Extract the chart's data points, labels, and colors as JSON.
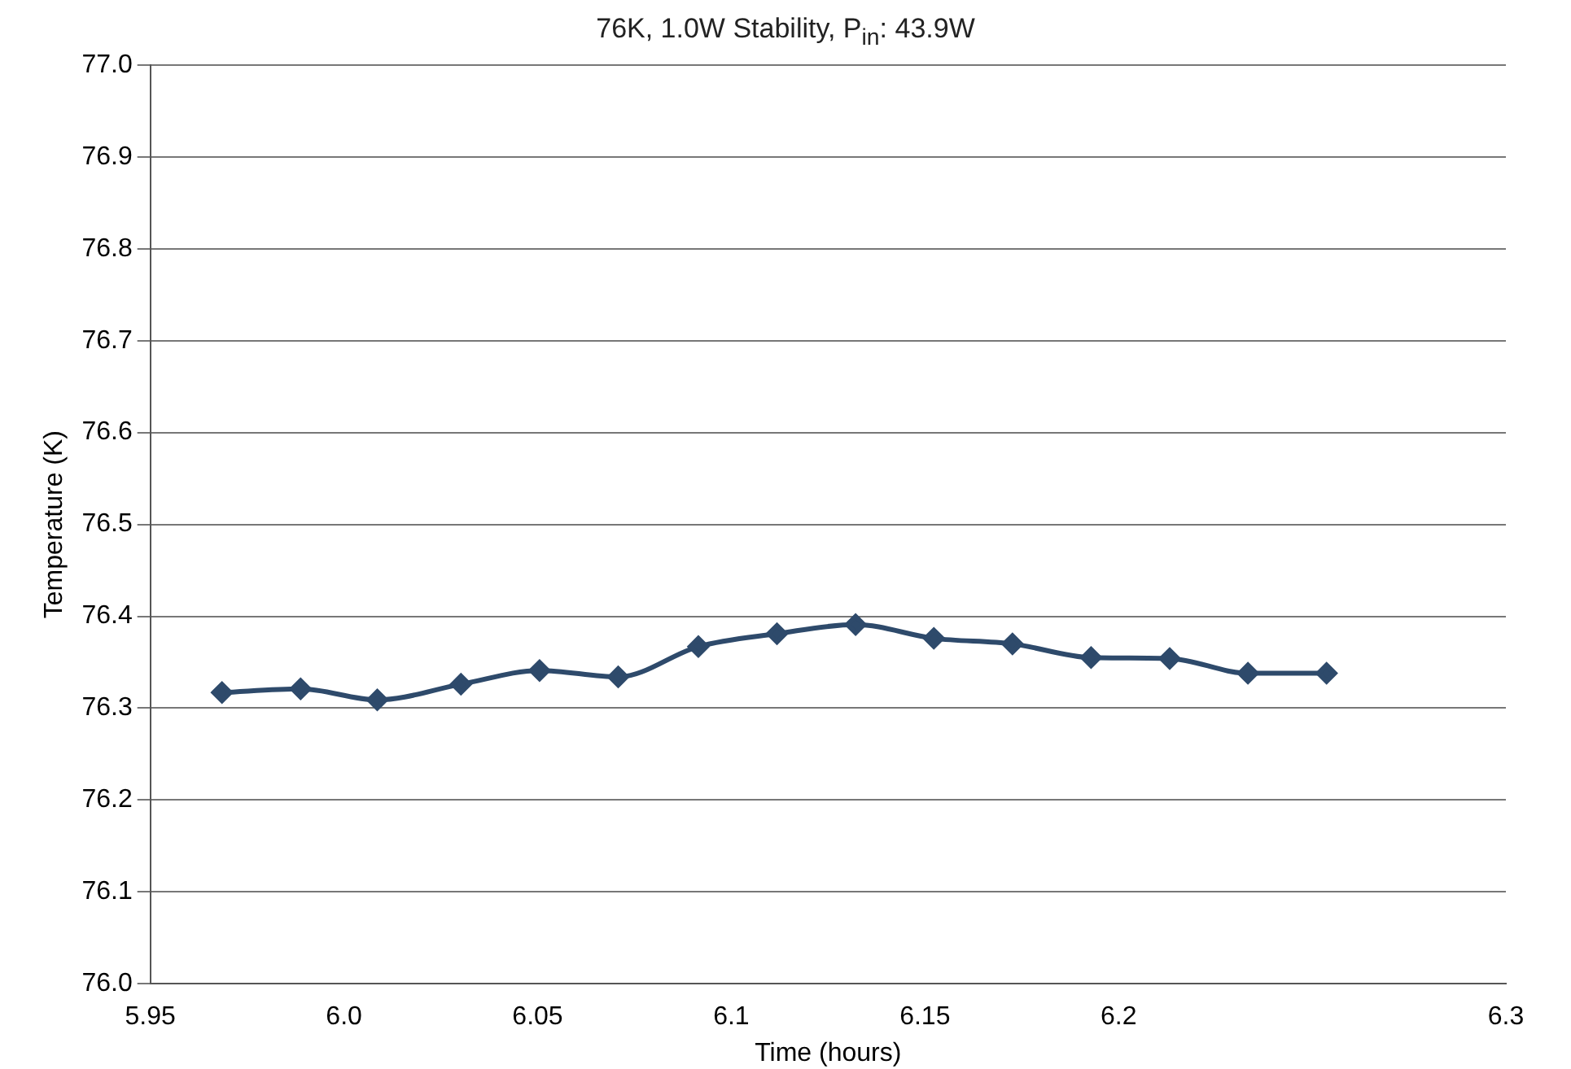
{
  "chart_data": {
    "type": "line",
    "title": "76K, 1.0W Stability, P$_{in}$: 43.9W",
    "xlabel": "Time (hours)",
    "ylabel": "Temperature (K)",
    "x": [
      5.9685,
      5.9888,
      6.0086,
      6.0302,
      6.0505,
      6.0708,
      6.0915,
      6.1118,
      6.1321,
      6.1523,
      6.1726,
      6.1929,
      6.2132,
      6.2334,
      6.2537
    ],
    "series": [
      {
        "color": "#2e4a6b",
        "values": [
          76.317,
          76.321,
          76.309,
          76.326,
          76.341,
          76.334,
          76.367,
          76.381,
          76.391,
          76.376,
          76.37,
          76.355,
          76.354,
          76.338,
          76.338
        ]
      }
    ],
    "xlim": [
      5.95,
      6.3
    ],
    "xticks": [
      5.95,
      {
        "value": 6,
        "label": "6.0"
      },
      6.05,
      6.1,
      6.15,
      6.2,
      6.3
    ],
    "ylim": [
      76.0,
      77.0
    ],
    "yticks": [
      {
        "value": 76,
        "label": "76.0"
      },
      76.1,
      76.2,
      76.3,
      76.4,
      76.5,
      76.6,
      76.7,
      76.8,
      76.9,
      {
        "value": 77,
        "label": "77.0"
      }
    ],
    "grid": "y",
    "legend": false,
    "marker": "diamond",
    "line_style": "solid"
  }
}
